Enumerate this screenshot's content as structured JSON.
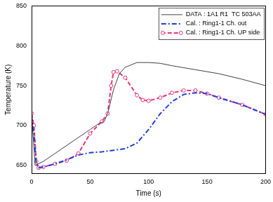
{
  "chart_data": {
    "type": "line",
    "x_label": "Time (s)",
    "y_label": "Temperature (K)",
    "xlim": [
      0,
      200
    ],
    "ylim": [
      640,
      850
    ],
    "xticks": [
      0,
      50,
      100,
      150,
      200
    ],
    "yticks": [
      650,
      700,
      750,
      800,
      850
    ],
    "grid": false,
    "legend": "upper right",
    "series": [
      {
        "name": "DATA : 1A1 R1  TC 503AA",
        "color": "#404040",
        "line_style": "solid",
        "marker": "none",
        "x": [
          0,
          3,
          10,
          20,
          30,
          40,
          50,
          58,
          62,
          65,
          70,
          75,
          80,
          90,
          100,
          110,
          120,
          140,
          160,
          180,
          200
        ],
        "values": [
          715,
          650,
          655,
          665,
          675,
          685,
          695,
          703,
          705,
          715,
          745,
          765,
          773,
          779,
          779,
          778,
          775,
          770,
          765,
          758,
          750
        ]
      },
      {
        "name": "Cal. : Ring1-1 Ch. out",
        "color": "#1f3fd6",
        "line_style": "dashdot",
        "marker": "none",
        "x": [
          0,
          2,
          4,
          6,
          10,
          20,
          30,
          40,
          50,
          60,
          70,
          80,
          90,
          100,
          110,
          120,
          130,
          140,
          150,
          160,
          180,
          200
        ],
        "values": [
          712,
          690,
          652,
          647,
          648,
          652,
          657,
          663,
          666,
          667,
          669,
          671,
          678,
          695,
          715,
          730,
          739,
          741,
          740,
          735,
          726,
          714
        ]
      },
      {
        "name": "Cal. : Ring1-1 Ch. UP side",
        "color": "#e8337a",
        "line_style": "dashed",
        "marker": "circle",
        "x": [
          0,
          2,
          4,
          6,
          10,
          20,
          30,
          40,
          50,
          60,
          65,
          68,
          70,
          73,
          80,
          90,
          95,
          100,
          110,
          120,
          130,
          140,
          150,
          160,
          180,
          200
        ],
        "values": [
          715,
          700,
          655,
          647,
          648,
          652,
          656,
          665,
          690,
          705,
          715,
          750,
          767,
          768,
          760,
          738,
          732,
          731,
          735,
          741,
          744,
          744,
          740,
          735,
          726,
          714
        ]
      }
    ]
  }
}
